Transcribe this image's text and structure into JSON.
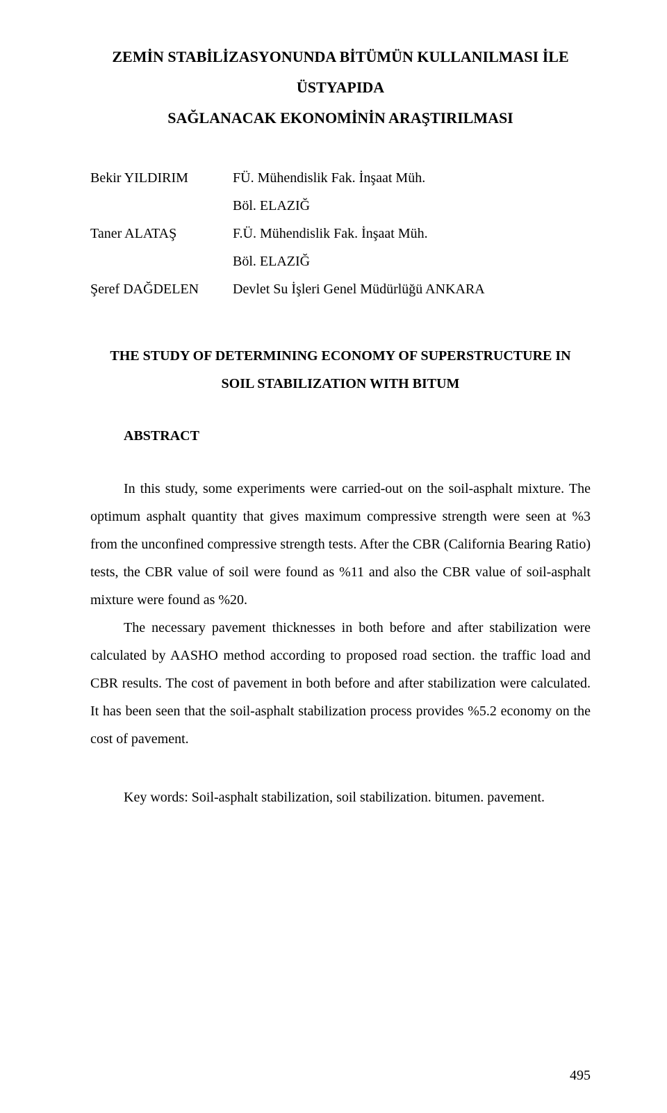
{
  "document": {
    "title_tr_line1": "ZEMİN STABİLİZASYONUNDA BİTÜMÜN KULLANILMASI İLE ÜSTYAPIDA",
    "title_tr_line2": "SAĞLANACAK EKONOMİNİN ARAŞTIRILMASI",
    "authors": [
      {
        "name": "Bekir YILDIRIM",
        "affiliation": "FÜ. Mühendislik Fak. İnşaat Müh.",
        "line2": "Böl. ELAZIĞ"
      },
      {
        "name": "Taner ALATAŞ",
        "affiliation": "F.Ü. Mühendislik Fak. İnşaat Müh.",
        "line2": "Böl. ELAZIĞ"
      },
      {
        "name": "Şeref DAĞDELEN",
        "affiliation": "Devlet Su İşleri Genel Müdürlüğü ANKARA",
        "line2": ""
      }
    ],
    "title_en_line1": "THE STUDY OF DETERMINING ECONOMY OF SUPERSTRUCTURE IN",
    "title_en_line2": "SOIL STABILIZATION WITH BITUM",
    "abstract_heading": "ABSTRACT",
    "abstract": {
      "p1": "In this study, some experiments were carried-out on the soil-asphalt mixture. The optimum asphalt quantity that gives maximum compressive strength were seen at %3 from the unconfined compressive strength tests. After the CBR (California Bearing Ratio) tests, the CBR value of soil were found as %11 and also the CBR value of soil-asphalt mixture were found as %20.",
      "p2": "The necessary pavement thicknesses in both before and after stabilization were calculated by AASHO method according to proposed road section. the traffic load and CBR results. The cost of pavement in both before and after stabilization were calculated. It has been seen that the soil-asphalt stabilization process provides %5.2 economy on the cost of pavement."
    },
    "keywords": "Key words: Soil-asphalt stabilization, soil stabilization. bitumen. pavement.",
    "page_number": "495",
    "colors": {
      "text": "#000000",
      "background": "#ffffff"
    },
    "typography": {
      "family": "Times New Roman",
      "title_pt": 16,
      "body_pt": 15,
      "line_spacing": 2.0
    }
  }
}
